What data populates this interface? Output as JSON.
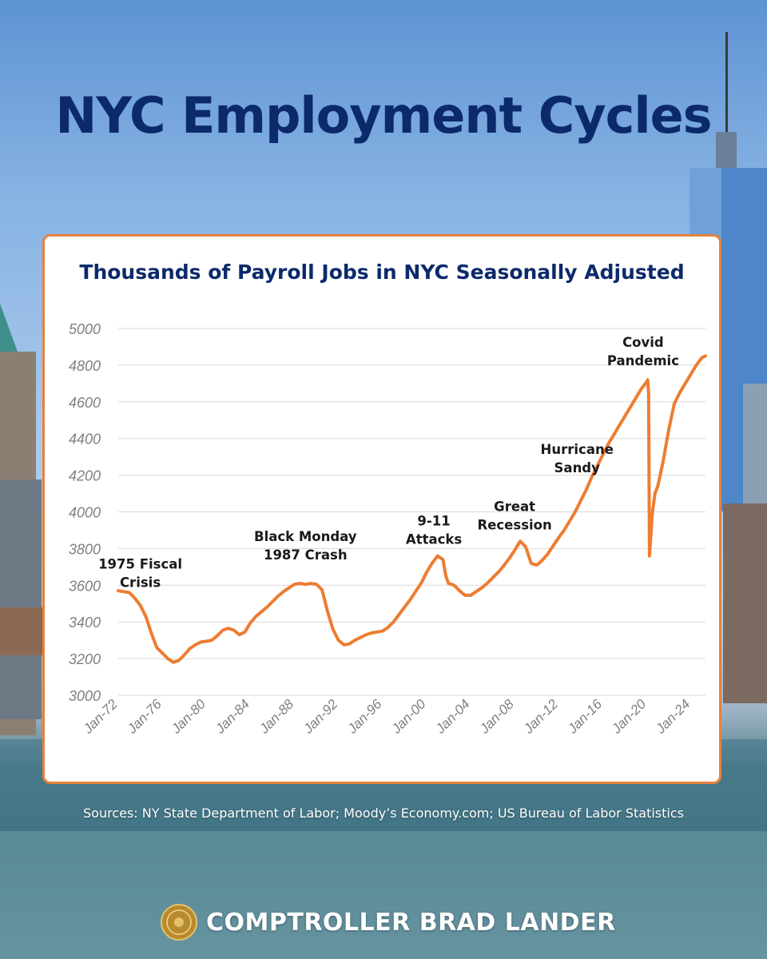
{
  "page": {
    "title": "NYC Employment Cycles",
    "sources": "Sources: NY State Department of Labor; Moody’s Economy.com; US Bureau of Labor Statistics",
    "footer": "COMPTROLLER BRAD LANDER"
  },
  "colors": {
    "title": "#0c2a6b",
    "line": "#ed7d31",
    "card_border": "#e8823b",
    "grid": "#d9d9d9",
    "tick_label": "#7f7f7f"
  },
  "chart_data": {
    "type": "line",
    "title": "Thousands of Payroll Jobs in NYC Seasonally Adjusted",
    "xlabel": "",
    "ylabel": "",
    "ylim": [
      3000,
      5000
    ],
    "xlim": [
      "1972-01",
      "2025-05"
    ],
    "grid": true,
    "legend": "none",
    "y_ticks": [
      3000,
      3200,
      3400,
      3600,
      3800,
      4000,
      4200,
      4400,
      4600,
      4800,
      5000
    ],
    "x_ticks": [
      {
        "date": "1972-01",
        "label": "Jan-72"
      },
      {
        "date": "1976-01",
        "label": "Jan-76"
      },
      {
        "date": "1980-01",
        "label": "Jan-80"
      },
      {
        "date": "1984-01",
        "label": "Jan-84"
      },
      {
        "date": "1988-01",
        "label": "Jan-88"
      },
      {
        "date": "1992-01",
        "label": "Jan-92"
      },
      {
        "date": "1996-01",
        "label": "Jan-96"
      },
      {
        "date": "2000-01",
        "label": "Jan-00"
      },
      {
        "date": "2004-01",
        "label": "Jan-04"
      },
      {
        "date": "2008-01",
        "label": "Jan-08"
      },
      {
        "date": "2012-01",
        "label": "Jan-12"
      },
      {
        "date": "2016-01",
        "label": "Jan-16"
      },
      {
        "date": "2020-01",
        "label": "Jan-20"
      },
      {
        "date": "2024-01",
        "label": "Jan-24"
      }
    ],
    "series": [
      {
        "points": [
          [
            "1972-01",
            3570
          ],
          [
            "1972-07",
            3565
          ],
          [
            "1973-01",
            3560
          ],
          [
            "1973-07",
            3530
          ],
          [
            "1974-01",
            3490
          ],
          [
            "1974-07",
            3430
          ],
          [
            "1975-01",
            3340
          ],
          [
            "1975-07",
            3260
          ],
          [
            "1976-01",
            3230
          ],
          [
            "1976-07",
            3200
          ],
          [
            "1977-01",
            3180
          ],
          [
            "1977-07",
            3190
          ],
          [
            "1978-01",
            3220
          ],
          [
            "1978-07",
            3255
          ],
          [
            "1979-01",
            3275
          ],
          [
            "1979-07",
            3290
          ],
          [
            "1980-01",
            3295
          ],
          [
            "1980-07",
            3300
          ],
          [
            "1981-01",
            3325
          ],
          [
            "1981-07",
            3355
          ],
          [
            "1982-01",
            3365
          ],
          [
            "1982-07",
            3355
          ],
          [
            "1983-01",
            3330
          ],
          [
            "1983-07",
            3345
          ],
          [
            "1984-01",
            3395
          ],
          [
            "1984-07",
            3430
          ],
          [
            "1985-01",
            3455
          ],
          [
            "1985-07",
            3480
          ],
          [
            "1986-01",
            3510
          ],
          [
            "1986-07",
            3540
          ],
          [
            "1987-01",
            3565
          ],
          [
            "1987-07",
            3585
          ],
          [
            "1988-01",
            3605
          ],
          [
            "1988-07",
            3610
          ],
          [
            "1989-01",
            3605
          ],
          [
            "1989-07",
            3610
          ],
          [
            "1990-01",
            3605
          ],
          [
            "1990-07",
            3575
          ],
          [
            "1991-01",
            3460
          ],
          [
            "1991-07",
            3360
          ],
          [
            "1992-01",
            3300
          ],
          [
            "1992-07",
            3275
          ],
          [
            "1993-01",
            3280
          ],
          [
            "1993-07",
            3300
          ],
          [
            "1994-01",
            3315
          ],
          [
            "1994-07",
            3330
          ],
          [
            "1995-01",
            3340
          ],
          [
            "1995-07",
            3345
          ],
          [
            "1996-01",
            3350
          ],
          [
            "1996-07",
            3370
          ],
          [
            "1997-01",
            3400
          ],
          [
            "1997-07",
            3440
          ],
          [
            "1998-01",
            3480
          ],
          [
            "1998-07",
            3520
          ],
          [
            "1999-01",
            3565
          ],
          [
            "1999-07",
            3610
          ],
          [
            "2000-01",
            3670
          ],
          [
            "2000-07",
            3720
          ],
          [
            "2001-01",
            3760
          ],
          [
            "2001-07",
            3740
          ],
          [
            "2001-10",
            3650
          ],
          [
            "2002-01",
            3610
          ],
          [
            "2002-07",
            3600
          ],
          [
            "2003-01",
            3570
          ],
          [
            "2003-07",
            3545
          ],
          [
            "2004-01",
            3545
          ],
          [
            "2004-07",
            3565
          ],
          [
            "2005-01",
            3585
          ],
          [
            "2005-07",
            3610
          ],
          [
            "2006-01",
            3640
          ],
          [
            "2006-07",
            3670
          ],
          [
            "2007-01",
            3705
          ],
          [
            "2007-07",
            3745
          ],
          [
            "2008-01",
            3790
          ],
          [
            "2008-07",
            3840
          ],
          [
            "2009-01",
            3810
          ],
          [
            "2009-07",
            3720
          ],
          [
            "2010-01",
            3710
          ],
          [
            "2010-07",
            3735
          ],
          [
            "2011-01",
            3770
          ],
          [
            "2011-07",
            3815
          ],
          [
            "2012-01",
            3860
          ],
          [
            "2012-07",
            3900
          ],
          [
            "2013-01",
            3950
          ],
          [
            "2013-07",
            4000
          ],
          [
            "2014-01",
            4060
          ],
          [
            "2014-07",
            4120
          ],
          [
            "2015-01",
            4190
          ],
          [
            "2015-07",
            4250
          ],
          [
            "2016-01",
            4310
          ],
          [
            "2016-07",
            4370
          ],
          [
            "2017-01",
            4420
          ],
          [
            "2017-07",
            4470
          ],
          [
            "2018-01",
            4520
          ],
          [
            "2018-07",
            4570
          ],
          [
            "2019-01",
            4620
          ],
          [
            "2019-07",
            4670
          ],
          [
            "2020-01",
            4710
          ],
          [
            "2020-02",
            4720
          ],
          [
            "2020-03",
            4650
          ],
          [
            "2020-04",
            3760
          ],
          [
            "2020-07",
            3990
          ],
          [
            "2020-10",
            4100
          ],
          [
            "2021-01",
            4140
          ],
          [
            "2021-07",
            4280
          ],
          [
            "2022-01",
            4450
          ],
          [
            "2022-07",
            4590
          ],
          [
            "2023-01",
            4650
          ],
          [
            "2023-07",
            4700
          ],
          [
            "2024-01",
            4750
          ],
          [
            "2024-07",
            4800
          ],
          [
            "2025-01",
            4840
          ],
          [
            "2025-05",
            4850
          ]
        ]
      }
    ],
    "annotations": [
      {
        "lines": [
          "1975 Fiscal",
          "Crisis"
        ],
        "date": "1974-01",
        "value": 3590
      },
      {
        "lines": [
          "Black Monday",
          "1987 Crash"
        ],
        "date": "1989-01",
        "value": 3740
      },
      {
        "lines": [
          "9-11",
          "Attacks"
        ],
        "date": "2000-09",
        "value": 3825
      },
      {
        "lines": [
          "Great",
          "Recession"
        ],
        "date": "2008-01",
        "value": 3905
      },
      {
        "lines": [
          "Hurricane",
          "Sandy"
        ],
        "date": "2013-09",
        "value": 4215
      },
      {
        "lines": [
          "Covid",
          "Pandemic"
        ],
        "date": "2019-09",
        "value": 4800
      }
    ]
  }
}
